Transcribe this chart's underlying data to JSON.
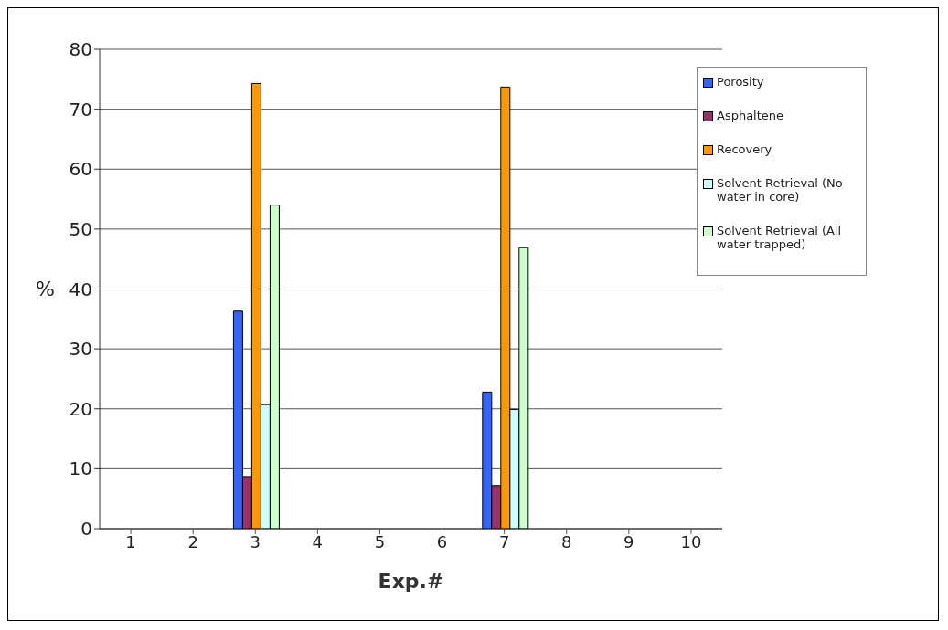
{
  "chart_data": {
    "type": "bar",
    "xlabel": "Exp.#",
    "ylabel": "%",
    "categories": [
      "1",
      "2",
      "3",
      "4",
      "5",
      "6",
      "7",
      "8",
      "9",
      "10"
    ],
    "series": [
      {
        "name": "Porosity",
        "color": "#3366ff",
        "values": [
          null,
          null,
          36.3,
          null,
          null,
          null,
          22.8,
          null,
          null,
          null
        ]
      },
      {
        "name": "Asphaltene",
        "color": "#993366",
        "values": [
          null,
          null,
          8.7,
          null,
          null,
          null,
          7.2,
          null,
          null,
          null
        ]
      },
      {
        "name": "Recovery",
        "color": "#ff9900",
        "values": [
          null,
          null,
          74.3,
          null,
          null,
          null,
          73.7,
          null,
          null,
          null
        ]
      },
      {
        "name": "Solvent Retrieval (No water in core)",
        "color": "#ccffff",
        "values": [
          null,
          null,
          20.7,
          null,
          null,
          null,
          19.9,
          null,
          null,
          null
        ]
      },
      {
        "name": "Solvent Retrieval (All water trapped)",
        "color": "#ccffcc",
        "values": [
          null,
          null,
          54.0,
          null,
          null,
          null,
          46.9,
          null,
          null,
          null
        ]
      }
    ],
    "ylim": [
      0,
      80
    ],
    "yticks": [
      0,
      10,
      20,
      30,
      40,
      50,
      60,
      70,
      80
    ],
    "grid": "y",
    "legend": "top right"
  }
}
